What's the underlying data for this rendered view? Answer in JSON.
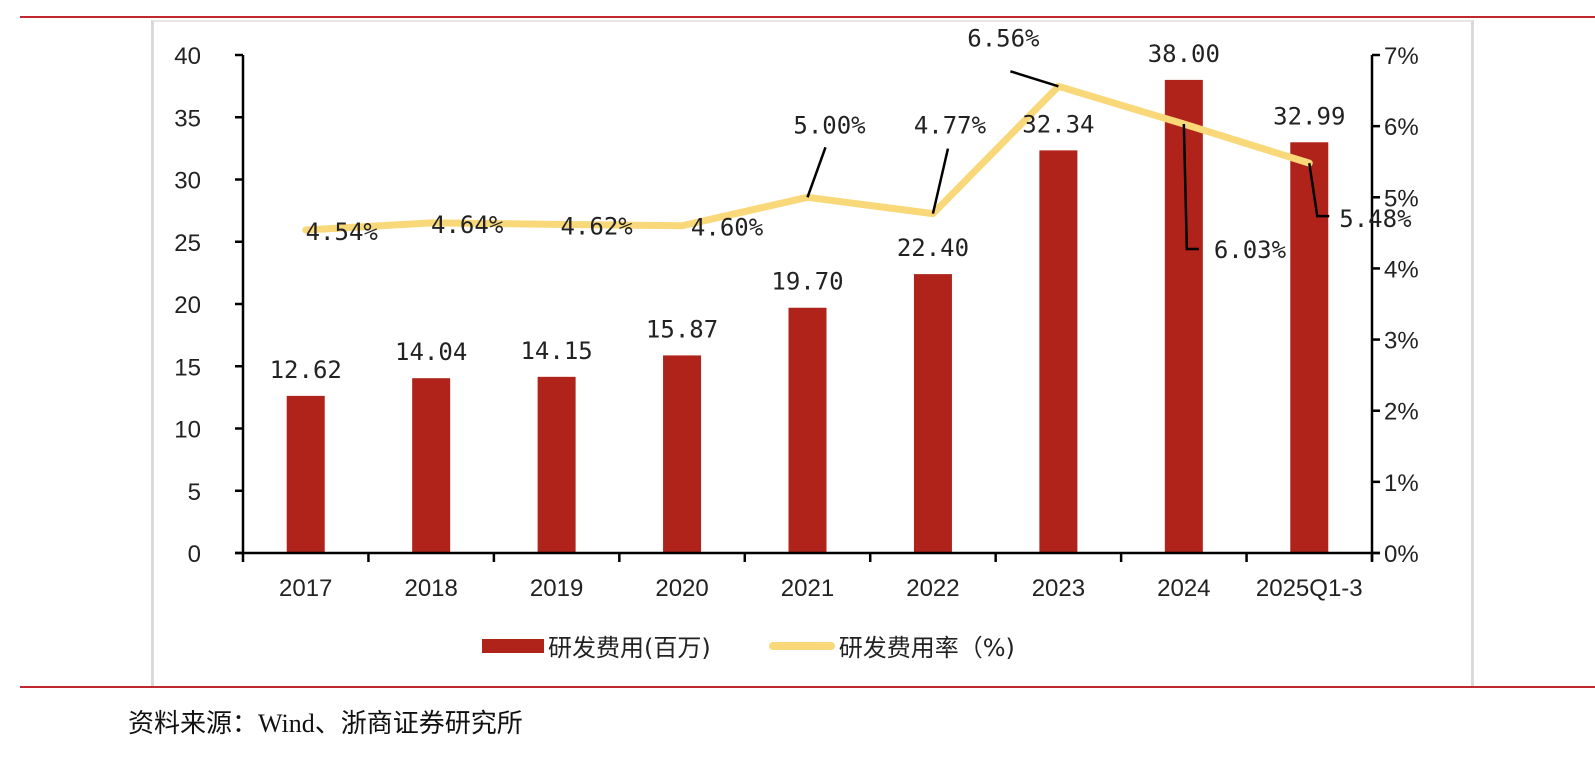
{
  "colors": {
    "bar": "#b0231a",
    "line": "#f8d878",
    "rule": "#c0282d",
    "axis": "#000000",
    "leader": "#000000"
  },
  "legend": {
    "bar_label": "研发费用(百万)",
    "line_label": "研发费用率（%)"
  },
  "source": "资料来源：Wind、浙商证券研究所",
  "chart_data": {
    "type": "bar",
    "title": "",
    "categories": [
      "2017",
      "2018",
      "2019",
      "2020",
      "2021",
      "2022",
      "2023",
      "2024",
      "2025Q1-3"
    ],
    "series": [
      {
        "name": "研发费用(百万)",
        "type": "bar",
        "axis": "left",
        "values": [
          12.62,
          14.04,
          14.15,
          15.87,
          19.7,
          22.4,
          32.34,
          38.0,
          32.99
        ],
        "labels": [
          "12.62",
          "14.04",
          "14.15",
          "15.87",
          "19.70",
          "22.40",
          "32.34",
          "38.00",
          "32.99"
        ]
      },
      {
        "name": "研发费用率（%)",
        "type": "line",
        "axis": "right",
        "values": [
          4.54,
          4.64,
          4.62,
          4.6,
          5.0,
          4.77,
          6.56,
          6.03,
          5.48
        ],
        "labels": [
          "4.54%",
          "4.64%",
          "4.62%",
          "4.60%",
          "5.00%",
          "4.77%",
          "6.56%",
          "6.03%",
          "5.48%"
        ]
      }
    ],
    "left_axis": {
      "min": 0,
      "max": 40,
      "step": 5,
      "ticks": [
        "0",
        "5",
        "10",
        "15",
        "20",
        "25",
        "30",
        "35",
        "40"
      ]
    },
    "right_axis": {
      "min": 0,
      "max": 7,
      "step": 1,
      "ticks": [
        "0%",
        "1%",
        "2%",
        "3%",
        "4%",
        "5%",
        "6%",
        "7%"
      ]
    },
    "xlabel": "",
    "ylabel": "",
    "grid": false,
    "legend_position": "bottom"
  }
}
